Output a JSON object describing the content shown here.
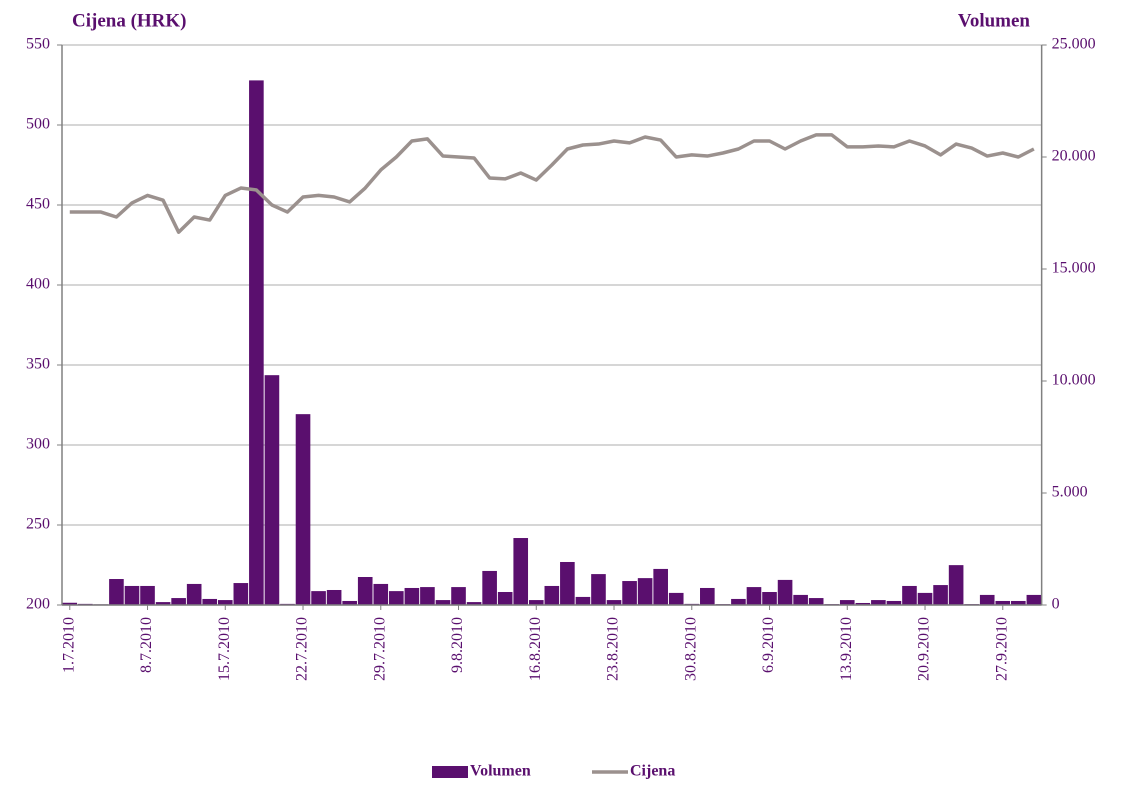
{
  "chart_data": {
    "type": "bar_line",
    "y_title": "Cijena (HRK)",
    "y2_title": "Volumen",
    "categories": [
      "1.7.2010",
      null,
      null,
      null,
      null,
      "8.7.2010",
      null,
      null,
      null,
      null,
      "15.7.2010",
      null,
      null,
      null,
      null,
      "22.7.2010",
      null,
      null,
      null,
      null,
      "29.7.2010",
      null,
      null,
      null,
      null,
      "9.8.2010",
      null,
      null,
      null,
      null,
      "16.8.2010",
      null,
      null,
      null,
      null,
      "23.8.2010",
      null,
      null,
      null,
      null,
      "30.8.2010",
      null,
      null,
      null,
      null,
      "6.9.2010",
      null,
      null,
      null,
      null,
      "13.9.2010",
      null,
      null,
      null,
      null,
      "20.9.2010",
      null,
      null,
      null,
      null,
      "27.9.2010",
      null,
      null
    ],
    "series": [
      {
        "name": "Volumen",
        "type": "bar",
        "axis": "y2",
        "color": "#5a0f6e",
        "values": [
          100,
          50,
          30,
          1160,
          850,
          850,
          130,
          310,
          940,
          270,
          220,
          980,
          23420,
          10260,
          50,
          8520,
          620,
          670,
          180,
          1250,
          940,
          620,
          760,
          800,
          220,
          800,
          130,
          1520,
          580,
          2990,
          220,
          850,
          1920,
          360,
          1380,
          220,
          1070,
          1200,
          1610,
          540,
          50,
          760,
          40,
          270,
          800,
          580,
          1120,
          450,
          310,
          40,
          220,
          90,
          220,
          180,
          850,
          540,
          890,
          1780,
          40,
          450,
          180,
          180,
          450
        ]
      },
      {
        "name": "Cijena",
        "type": "line",
        "color": "#9b918e",
        "values": [
          445.6,
          445.6,
          445.6,
          442.5,
          451.3,
          456,
          453,
          433,
          442.5,
          440.6,
          456,
          460.6,
          459.4,
          450,
          445.6,
          455,
          456,
          455,
          451.9,
          460.6,
          471.9,
          480,
          490,
          491.3,
          480.6,
          480,
          479.4,
          466.9,
          466.3,
          470,
          465.6,
          475,
          485,
          487.5,
          488.1,
          490,
          488.8,
          492.5,
          490.6,
          480,
          481.3,
          480.6,
          482.5,
          485,
          490,
          490,
          485,
          490,
          493.8,
          493.8,
          486.3,
          486.3,
          486.9,
          486.3,
          490,
          486.9,
          481.3,
          488.1,
          485.6,
          480.6,
          482.5,
          480,
          485
        ]
      }
    ],
    "ylim": [
      200,
      550
    ],
    "yticks": [
      200,
      250,
      300,
      350,
      400,
      450,
      500,
      550
    ],
    "y2lim": [
      0,
      25000
    ],
    "y2ticks": [
      0,
      {
        "value": 5000,
        "label": "5.000"
      },
      {
        "value": 10000,
        "label": "10.000"
      },
      {
        "value": 15000,
        "label": "15.000"
      },
      {
        "value": 20000,
        "label": "20.000"
      },
      {
        "value": 25000,
        "label": "25.000"
      }
    ],
    "grid": true,
    "legend": "bottom"
  }
}
